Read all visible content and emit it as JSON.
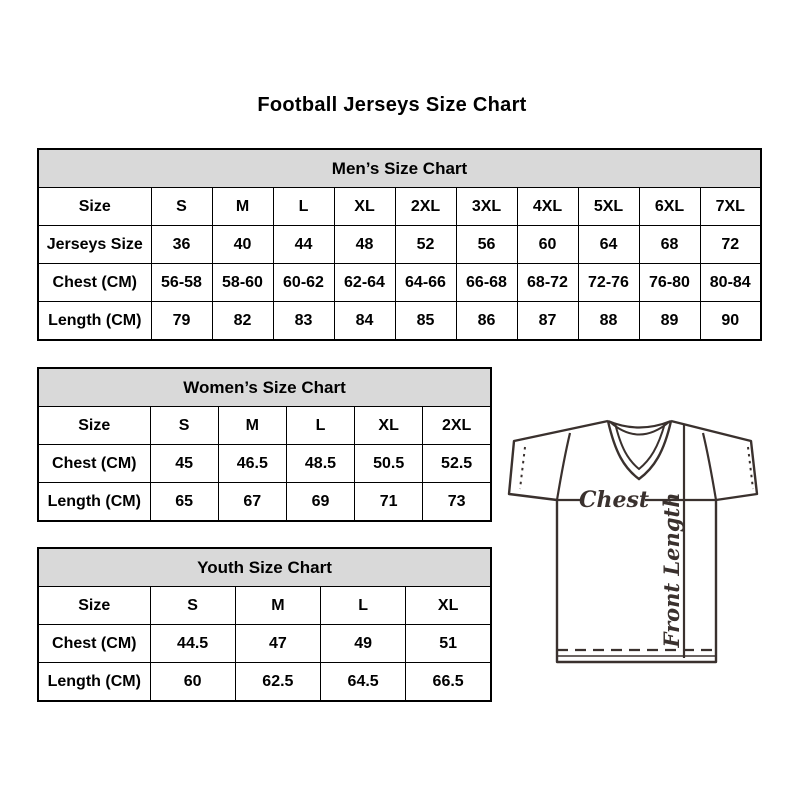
{
  "page": {
    "title": "Football Jerseys Size Chart"
  },
  "colors": {
    "background": "#ffffff",
    "table_border": "#000000",
    "table_title_bg": "#d9d9d9",
    "text": "#000000",
    "sketch_line": "#3a312e"
  },
  "tables": {
    "mens": {
      "title": "Men’s Size Chart",
      "rows": [
        {
          "label": "Size",
          "values": [
            "S",
            "M",
            "L",
            "XL",
            "2XL",
            "3XL",
            "4XL",
            "5XL",
            "6XL",
            "7XL"
          ]
        },
        {
          "label": "Jerseys Size",
          "values": [
            "36",
            "40",
            "44",
            "48",
            "52",
            "56",
            "60",
            "64",
            "68",
            "72"
          ]
        },
        {
          "label": "Chest (CM)",
          "values": [
            "56-58",
            "58-60",
            "60-62",
            "62-64",
            "64-66",
            "66-68",
            "68-72",
            "72-76",
            "76-80",
            "80-84"
          ]
        },
        {
          "label": "Length (CM)",
          "values": [
            "79",
            "82",
            "83",
            "84",
            "85",
            "86",
            "87",
            "88",
            "89",
            "90"
          ]
        }
      ]
    },
    "womens": {
      "title": "Women’s Size Chart",
      "rows": [
        {
          "label": "Size",
          "values": [
            "S",
            "M",
            "L",
            "XL",
            "2XL"
          ]
        },
        {
          "label": "Chest (CM)",
          "values": [
            "45",
            "46.5",
            "48.5",
            "50.5",
            "52.5"
          ]
        },
        {
          "label": "Length (CM)",
          "values": [
            "65",
            "67",
            "69",
            "71",
            "73"
          ]
        }
      ]
    },
    "youth": {
      "title": "Youth Size Chart",
      "rows": [
        {
          "label": "Size",
          "values": [
            "S",
            "M",
            "L",
            "XL"
          ]
        },
        {
          "label": "Chest (CM)",
          "values": [
            "44.5",
            "47",
            "49",
            "51"
          ]
        },
        {
          "label": "Length (CM)",
          "values": [
            "60",
            "62.5",
            "64.5",
            "66.5"
          ]
        }
      ]
    }
  },
  "diagram": {
    "chest_label": "Chest",
    "front_length_label": "Front Length"
  }
}
